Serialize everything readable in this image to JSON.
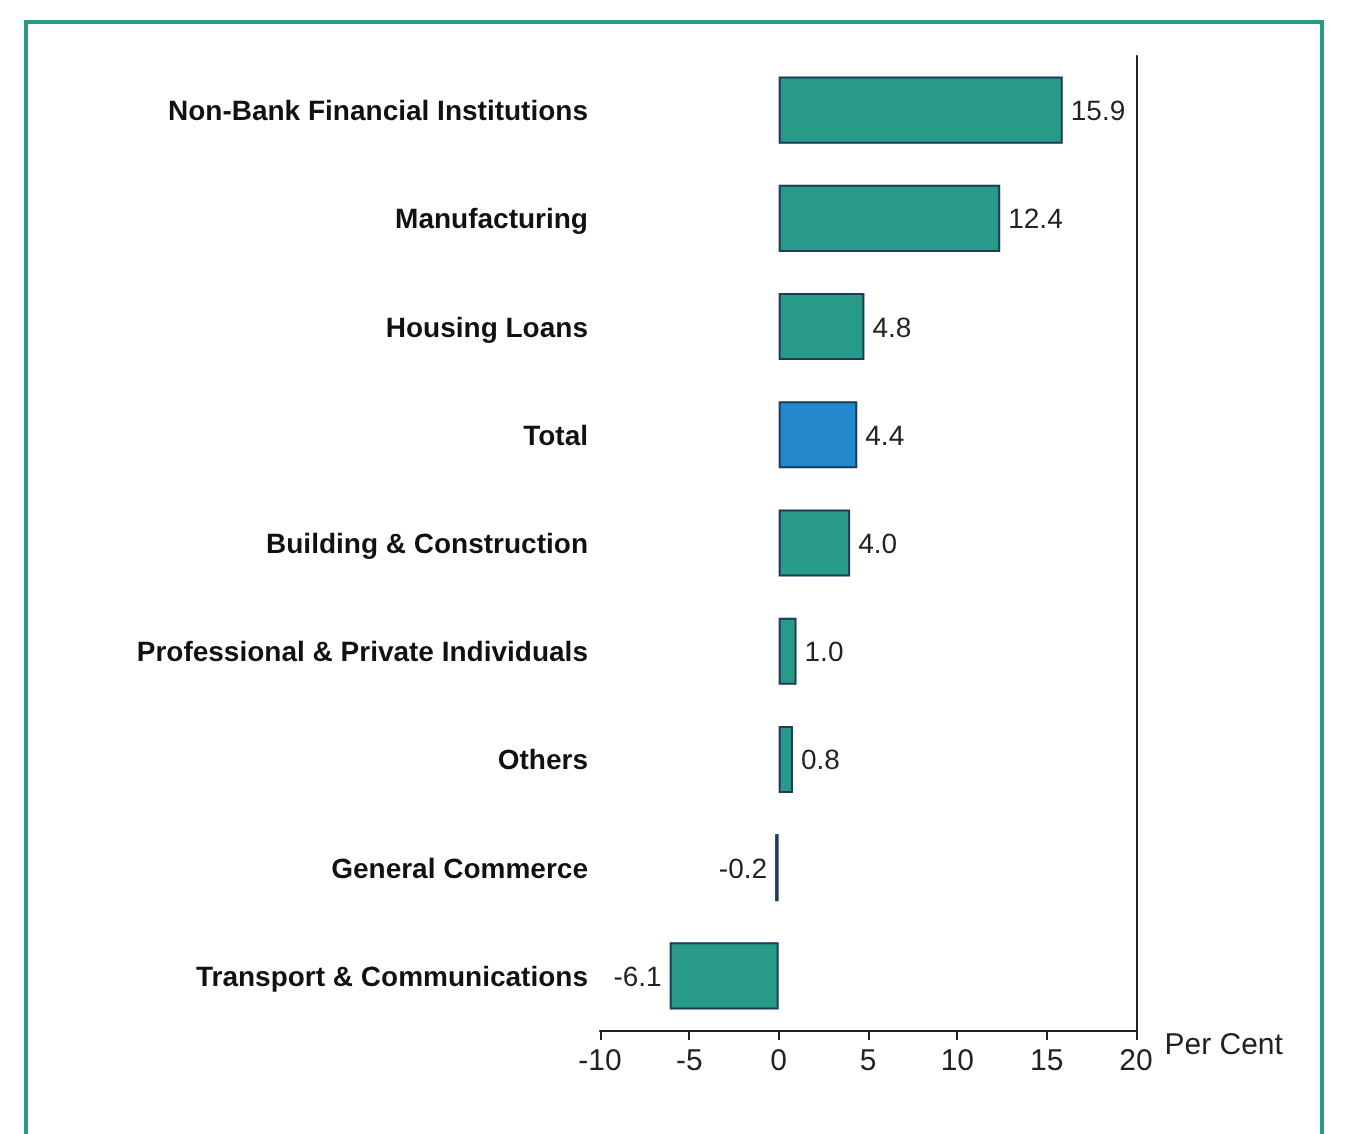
{
  "chart_data": {
    "type": "bar",
    "orientation": "horizontal",
    "xlabel": "Per Cent",
    "categories": [
      "Non-Bank Financial Institutions",
      "Manufacturing",
      "Housing Loans",
      "Total",
      "Building & Construction",
      "Professional & Private Individuals",
      "Others",
      "General Commerce",
      "Transport & Communications"
    ],
    "values": [
      15.9,
      12.4,
      4.8,
      4.4,
      4.0,
      1.0,
      0.8,
      -0.2,
      -6.1
    ],
    "value_labels": [
      "15.9",
      "12.4",
      "4.8",
      "4.4",
      "4.0",
      "1.0",
      "0.8",
      "-0.2",
      "-6.1"
    ],
    "colors": [
      "#279a88",
      "#279a88",
      "#279a88",
      "#2489cc",
      "#279a88",
      "#279a88",
      "#279a88",
      "#279a88",
      "#279a88"
    ],
    "xlim": [
      -10,
      20
    ],
    "xticks": [
      -10,
      -5,
      0,
      5,
      10,
      15,
      20
    ],
    "grid": false
  }
}
